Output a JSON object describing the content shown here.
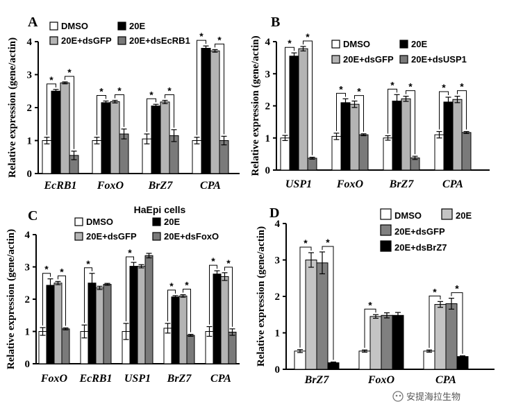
{
  "chart_data": [
    {
      "panel": "A",
      "type": "bar",
      "title": "",
      "ylabel": "Relative expression (gene/actin)",
      "ylim": [
        0,
        4
      ],
      "yticks": [
        "0",
        "1",
        "2",
        "3",
        "4"
      ],
      "categories": [
        "EcRB1",
        "FoxO",
        "BrZ7",
        "CPA"
      ],
      "series": [
        {
          "name": "DMSO",
          "color": "#ffffff",
          "values": [
            1.0,
            1.0,
            1.05,
            1.0
          ],
          "errors": [
            0.1,
            0.1,
            0.15,
            0.1
          ]
        },
        {
          "name": "20E",
          "color": "#000000",
          "values": [
            2.5,
            2.15,
            2.05,
            3.8
          ],
          "errors": [
            0.05,
            0.05,
            0.05,
            0.07
          ]
        },
        {
          "name": "20E+dsGFP",
          "color": "#b4b4b4",
          "values": [
            2.75,
            2.18,
            2.17,
            3.72
          ],
          "errors": [
            0.03,
            0.04,
            0.05,
            0.04
          ]
        },
        {
          "name": "20E+dsEcRB1",
          "color": "#7a7a7a",
          "values": [
            0.55,
            1.2,
            1.15,
            1.0
          ],
          "errors": [
            0.13,
            0.15,
            0.18,
            0.13
          ]
        }
      ],
      "legend_cols": 2,
      "significance": [
        {
          "category": 0,
          "from": 0,
          "to": 1,
          "label": "*"
        },
        {
          "category": 0,
          "from": 2,
          "to": 3,
          "label": "*"
        },
        {
          "category": 1,
          "from": 0,
          "to": 1,
          "label": "*"
        },
        {
          "category": 1,
          "from": 2,
          "to": 3,
          "label": "*"
        },
        {
          "category": 2,
          "from": 0,
          "to": 1,
          "label": "*"
        },
        {
          "category": 2,
          "from": 2,
          "to": 3,
          "label": "*"
        },
        {
          "category": 3,
          "from": 0,
          "to": 1,
          "label": "*"
        },
        {
          "category": 3,
          "from": 2,
          "to": 3,
          "label": "*"
        }
      ]
    },
    {
      "panel": "B",
      "type": "bar",
      "title": "",
      "ylabel": "Relative expression (gene/actin)",
      "ylim": [
        0,
        4
      ],
      "yticks": [
        "0",
        "1",
        "2",
        "3",
        "4"
      ],
      "categories": [
        "USP1",
        "FoxO",
        "BrZ7",
        "CPA"
      ],
      "series": [
        {
          "name": "DMSO",
          "color": "#ffffff",
          "values": [
            1.0,
            1.05,
            1.0,
            1.1
          ],
          "errors": [
            0.08,
            0.1,
            0.07,
            0.1
          ]
        },
        {
          "name": "20E",
          "color": "#000000",
          "values": [
            3.55,
            2.1,
            2.15,
            2.12
          ],
          "errors": [
            0.1,
            0.12,
            0.2,
            0.15
          ]
        },
        {
          "name": "20E+dsGFP",
          "color": "#b4b4b4",
          "values": [
            3.78,
            2.05,
            2.22,
            2.2
          ],
          "errors": [
            0.07,
            0.1,
            0.08,
            0.1
          ]
        },
        {
          "name": "20E+dsUSP1",
          "color": "#7a7a7a",
          "values": [
            0.37,
            1.1,
            0.38,
            1.17
          ],
          "errors": [
            0.03,
            0.03,
            0.05,
            0.03
          ]
        }
      ],
      "legend_cols": 2,
      "significance": [
        {
          "category": 0,
          "from": 0,
          "to": 1,
          "label": "*"
        },
        {
          "category": 0,
          "from": 2,
          "to": 3,
          "label": "*"
        },
        {
          "category": 1,
          "from": 0,
          "to": 1,
          "label": "*"
        },
        {
          "category": 1,
          "from": 2,
          "to": 3,
          "label": "*"
        },
        {
          "category": 2,
          "from": 0,
          "to": 1,
          "label": "*"
        },
        {
          "category": 2,
          "from": 2,
          "to": 3,
          "label": "*"
        },
        {
          "category": 3,
          "from": 0,
          "to": 1,
          "label": "*"
        },
        {
          "category": 3,
          "from": 2,
          "to": 3,
          "label": "*"
        }
      ]
    },
    {
      "panel": "C",
      "type": "bar",
      "title": "HaEpi cells",
      "ylabel": "Relative expression (gene/actin)",
      "ylim": [
        0,
        4
      ],
      "yticks": [
        "0",
        "1",
        "2",
        "3",
        "4"
      ],
      "categories": [
        "FoxO",
        "EcRB1",
        "USP1",
        "BrZ7",
        "CPA"
      ],
      "series": [
        {
          "name": "DMSO",
          "color": "#ffffff",
          "values": [
            1.0,
            1.0,
            1.0,
            1.1,
            1.0
          ],
          "errors": [
            0.12,
            0.2,
            0.25,
            0.15,
            0.15
          ]
        },
        {
          "name": "20E",
          "color": "#000000",
          "values": [
            2.43,
            2.5,
            3.02,
            2.07,
            2.78
          ],
          "errors": [
            0.2,
            0.3,
            0.12,
            0.04,
            0.1
          ]
        },
        {
          "name": "20E+dsGFP",
          "color": "#b4b4b4",
          "values": [
            2.5,
            2.35,
            3.02,
            2.1,
            2.7
          ],
          "errors": [
            0.05,
            0.05,
            0.05,
            0.04,
            0.12
          ]
        },
        {
          "name": "20E+dsFoxO",
          "color": "#7a7a7a",
          "values": [
            1.08,
            2.46,
            3.35,
            0.88,
            0.98
          ],
          "errors": [
            0.03,
            0.03,
            0.07,
            0.03,
            0.1
          ]
        }
      ],
      "legend_cols": 2,
      "significance": [
        {
          "category": 0,
          "from": 0,
          "to": 1,
          "label": "*"
        },
        {
          "category": 0,
          "from": 2,
          "to": 3,
          "label": "*"
        },
        {
          "category": 1,
          "from": 0,
          "to": 1,
          "label": "*"
        },
        {
          "category": 2,
          "from": 0,
          "to": 1,
          "label": "*"
        },
        {
          "category": 3,
          "from": 0,
          "to": 1,
          "label": "*"
        },
        {
          "category": 3,
          "from": 2,
          "to": 3,
          "label": "*"
        },
        {
          "category": 4,
          "from": 0,
          "to": 1,
          "label": "*"
        },
        {
          "category": 4,
          "from": 2,
          "to": 3,
          "label": "*"
        }
      ]
    },
    {
      "panel": "D",
      "type": "bar",
      "title": "",
      "ylabel": "Relative expression (gene/actin)",
      "ylim": [
        0,
        4
      ],
      "yticks": [
        "0",
        "1",
        "2",
        "3",
        "4"
      ],
      "categories": [
        "BrZ7",
        "FoxO",
        "CPA"
      ],
      "series": [
        {
          "name": "DMSO",
          "color": "#ffffff",
          "values": [
            0.5,
            0.5,
            0.5
          ],
          "errors": [
            0.04,
            0.03,
            0.03
          ]
        },
        {
          "name": "20E",
          "color": "#c4c4c4",
          "values": [
            3.0,
            1.45,
            1.78
          ],
          "errors": [
            0.2,
            0.05,
            0.08
          ]
        },
        {
          "name": "20E+dsGFP",
          "color": "#808080",
          "values": [
            2.92,
            1.48,
            1.8
          ],
          "errors": [
            0.3,
            0.07,
            0.15
          ]
        },
        {
          "name": "20E+dsBrZ7",
          "color": "#000000",
          "values": [
            0.18,
            1.48,
            0.35
          ],
          "errors": [
            0.02,
            0.08,
            0.02
          ]
        }
      ],
      "legend_cols": 1,
      "significance": [
        {
          "category": 0,
          "from": 0,
          "to": 1,
          "label": "*"
        },
        {
          "category": 0,
          "from": 2,
          "to": 3,
          "label": "*"
        },
        {
          "category": 1,
          "from": 0,
          "to": 1,
          "label": "*"
        },
        {
          "category": 2,
          "from": 0,
          "to": 1,
          "label": "*"
        },
        {
          "category": 2,
          "from": 2,
          "to": 3,
          "label": "*"
        }
      ]
    }
  ],
  "watermark": "安提海拉生物"
}
